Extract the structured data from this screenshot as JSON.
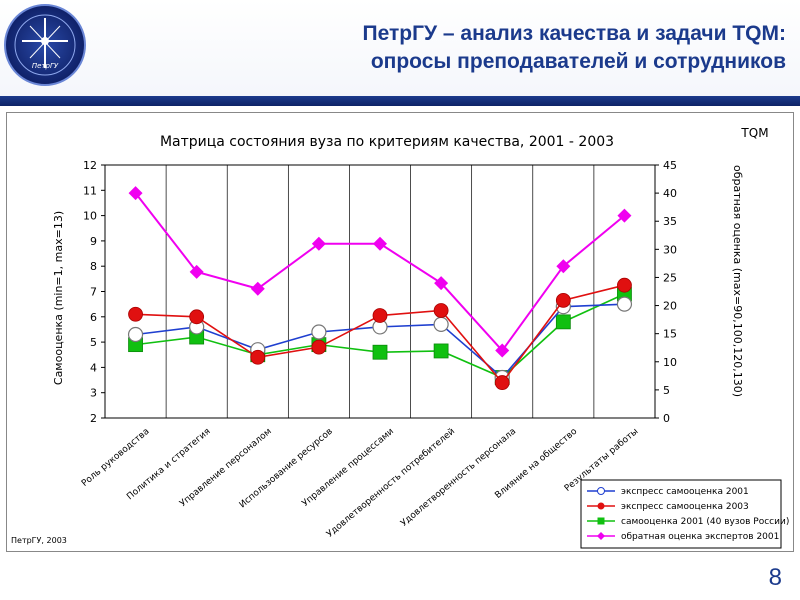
{
  "header": {
    "title_line1": "ПетрГУ – анализ качества и задачи TQM:",
    "title_line2": "опросы преподавателей и сотрудников",
    "logo_text": "Петрозаводский государственный университет",
    "logo_mark": "ПетрГУ"
  },
  "footer": {
    "page_number": "8",
    "source": "ПетрГУ, 2003"
  },
  "colors": {
    "title": "#1b3a8c",
    "series_blue": "#1f3fd0",
    "series_red": "#e01010",
    "series_green": "#10c010",
    "series_magenta": "#f000f0"
  },
  "chart_data": {
    "type": "line",
    "title": "Матрица состояния вуза по критериям качества, 2001 - 2003",
    "corner_label": "TQM",
    "ylabel_left": "Самооценка (min=1, max=13)",
    "ylabel_right": "обратная оценка (max=90,100,120,130)",
    "ylim_left": [
      2,
      12
    ],
    "ylim_right": [
      0,
      45
    ],
    "yticks_left": [
      "2",
      "3",
      "4",
      "5",
      "6",
      "7",
      "8",
      "9",
      "10",
      "11",
      "12"
    ],
    "yticks_right": [
      "0",
      "5",
      "10",
      "15",
      "20",
      "25",
      "30",
      "35",
      "40",
      "45"
    ],
    "grid": "vertical",
    "legend_position": "bottom-right",
    "categories": [
      "Роль руководства",
      "Политика и стратегия",
      "Управление персоналом",
      "Использование ресурсов",
      "Управление процессами",
      "Удовлетворенность потребителей",
      "Удовлетворенность персонала",
      "Влияние на общество",
      "Результаты работы"
    ],
    "series": [
      {
        "name": "экспресс самооценка 2001",
        "axis": "left",
        "color": "#1f3fd0",
        "marker": "circle-open",
        "values": [
          5.3,
          5.6,
          4.7,
          5.4,
          5.6,
          5.7,
          3.6,
          6.4,
          6.5
        ]
      },
      {
        "name": "экспресс самооценка 2003",
        "axis": "left",
        "color": "#e01010",
        "marker": "circle",
        "values": [
          6.1,
          6.0,
          4.4,
          4.8,
          6.05,
          6.25,
          3.4,
          6.65,
          7.25
        ]
      },
      {
        "name": "самооценка 2001 (40 вузов России)",
        "axis": "left",
        "color": "#10c010",
        "marker": "square",
        "values": [
          4.9,
          5.2,
          4.5,
          4.9,
          4.6,
          4.65,
          3.6,
          5.8,
          6.9
        ]
      },
      {
        "name": "обратная оценка экспертов 2001",
        "axis": "right",
        "color": "#f000f0",
        "marker": "diamond",
        "values": [
          40,
          26,
          23,
          31,
          31,
          24,
          12,
          27,
          36
        ]
      }
    ]
  }
}
